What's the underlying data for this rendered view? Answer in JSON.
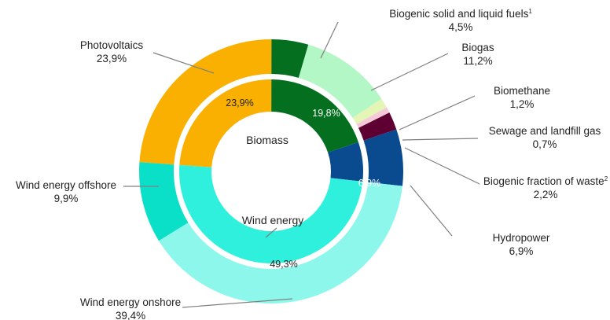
{
  "chart_data": {
    "type": "pie",
    "subtype": "nested-donut",
    "inner_ring": [
      {
        "name": "Photovoltaics",
        "value": 23.9,
        "label": "23,9%",
        "color": "#f9b000"
      },
      {
        "name": "Biomass",
        "value": 19.8,
        "label": "19,8%",
        "color": "#046f1f"
      },
      {
        "name": "Hydropower",
        "value": 6.9,
        "label": "6,9%",
        "color": "#0a4a8e"
      },
      {
        "name": "Wind energy",
        "value": 49.3,
        "label": "49,3%",
        "color": "#2ef0dc"
      }
    ],
    "center_labels": {
      "biomass": "Biomass",
      "wind": "Wind energy"
    },
    "outer_ring": [
      {
        "name": "Photovoltaics",
        "value": 23.9,
        "label": "23,9%",
        "color": "#f9b000"
      },
      {
        "name": "Biogenic solid and liquid fuels",
        "sup": "1",
        "value": 4.5,
        "label": "4,5%",
        "color": "#046f1f"
      },
      {
        "name": "Biogas",
        "value": 11.2,
        "label": "11,2%",
        "color": "#b3f7c6"
      },
      {
        "name": "Biomethane",
        "value": 1.2,
        "label": "1,2%",
        "color": "#e4f5b5"
      },
      {
        "name": "Sewage and landfill gas",
        "value": 0.7,
        "label": "0,7%",
        "color": "#f6c9d9"
      },
      {
        "name": "Biogenic fraction of waste",
        "sup": "2",
        "value": 2.2,
        "label": "2,2%",
        "color": "#5f0033"
      },
      {
        "name": "Hydropower",
        "value": 6.9,
        "label": "6,9%",
        "color": "#0a4a8e"
      },
      {
        "name": "Wind energy onshore",
        "value": 39.4,
        "label": "39,4%",
        "color": "#8ef7ec"
      },
      {
        "name": "Wind energy offshore",
        "value": 9.9,
        "label": "9,9%",
        "color": "#0ae0c8"
      }
    ]
  }
}
